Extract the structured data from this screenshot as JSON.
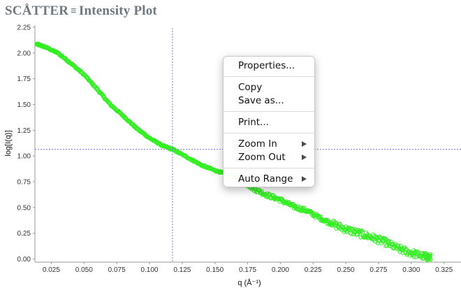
{
  "app": {
    "title_part1": "SCÅTTER",
    "title_sep": "≡",
    "title_part2": "Intensity Plot"
  },
  "chart_data": {
    "type": "scatter",
    "xlabel": "q (Å⁻¹)",
    "ylabel": "log[I(q)]",
    "xlim": [
      0.0125,
      0.338
    ],
    "ylim": [
      -0.03,
      2.27
    ],
    "xticks": [
      "0.025",
      "0.050",
      "0.075",
      "0.100",
      "0.125",
      "0.150",
      "0.175",
      "0.200",
      "0.225",
      "0.250",
      "0.275",
      "0.300",
      "0.325"
    ],
    "yticks": [
      "0.00",
      "0.25",
      "0.50",
      "0.75",
      "1.00",
      "1.25",
      "1.50",
      "1.75",
      "2.00",
      "2.25"
    ],
    "crosshair": {
      "x": 0.1176,
      "y": 1.065,
      "color": "#7b7bdc"
    },
    "series": [
      {
        "marker": "circle-open",
        "color": "#33ee22",
        "points": [
          [
            0.014,
            2.085
          ],
          [
            0.02,
            2.06
          ],
          [
            0.03,
            2.0
          ],
          [
            0.04,
            1.9
          ],
          [
            0.05,
            1.79
          ],
          [
            0.06,
            1.65
          ],
          [
            0.07,
            1.5
          ],
          [
            0.08,
            1.39
          ],
          [
            0.09,
            1.27
          ],
          [
            0.1,
            1.175
          ],
          [
            0.11,
            1.1
          ],
          [
            0.1176,
            1.065
          ],
          [
            0.13,
            0.98
          ],
          [
            0.14,
            0.91
          ],
          [
            0.15,
            0.86
          ],
          [
            0.16,
            0.82
          ],
          [
            0.17,
            0.77
          ],
          [
            0.18,
            0.68
          ],
          [
            0.19,
            0.62
          ],
          [
            0.2,
            0.575
          ],
          [
            0.21,
            0.51
          ],
          [
            0.22,
            0.47
          ],
          [
            0.23,
            0.4
          ],
          [
            0.24,
            0.34
          ],
          [
            0.25,
            0.29
          ],
          [
            0.26,
            0.25
          ],
          [
            0.27,
            0.21
          ],
          [
            0.28,
            0.165
          ],
          [
            0.29,
            0.1
          ],
          [
            0.3,
            0.06
          ],
          [
            0.31,
            0.025
          ],
          [
            0.315,
            0.015
          ]
        ]
      }
    ]
  },
  "context_menu": {
    "groups": [
      [
        {
          "label": "Properties...",
          "submenu": false
        }
      ],
      [
        {
          "label": "Copy",
          "submenu": false
        },
        {
          "label": "Save as...",
          "submenu": false
        }
      ],
      [
        {
          "label": "Print...",
          "submenu": false
        }
      ],
      [
        {
          "label": "Zoom In",
          "submenu": true
        },
        {
          "label": "Zoom Out",
          "submenu": true
        }
      ],
      [
        {
          "label": "Auto Range",
          "submenu": true
        }
      ]
    ]
  }
}
